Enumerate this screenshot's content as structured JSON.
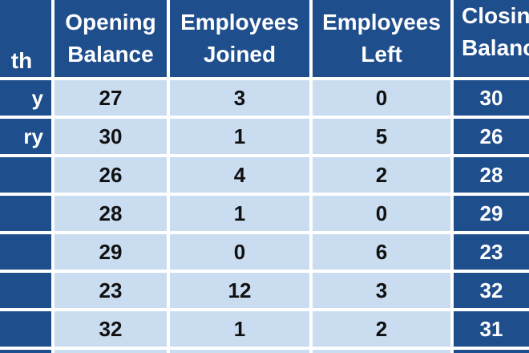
{
  "header": {
    "month": "th",
    "opening_line1": "Opening",
    "opening_line2": "Balance",
    "joined_line1": "Employees",
    "joined_line2": "Joined",
    "left_line1": "Employees",
    "left_line2": "Left",
    "closing_line1": "Closin",
    "closing_line2": "Balanc"
  },
  "rows": [
    {
      "month": "y",
      "opening": "27",
      "joined": "3",
      "left": "0",
      "closing": "30"
    },
    {
      "month": "ry",
      "opening": "30",
      "joined": "1",
      "left": "5",
      "closing": "26"
    },
    {
      "month": "",
      "opening": "26",
      "joined": "4",
      "left": "2",
      "closing": "28"
    },
    {
      "month": "",
      "opening": "28",
      "joined": "1",
      "left": "0",
      "closing": "29"
    },
    {
      "month": "",
      "opening": "29",
      "joined": "0",
      "left": "6",
      "closing": "23"
    },
    {
      "month": "",
      "opening": "23",
      "joined": "12",
      "left": "3",
      "closing": "32"
    },
    {
      "month": "",
      "opening": "32",
      "joined": "1",
      "left": "2",
      "closing": "31"
    }
  ],
  "colors": {
    "header_bg": "#1f4e8c",
    "body_light_bg": "#c9dcf0",
    "grid": "#ffffff"
  }
}
